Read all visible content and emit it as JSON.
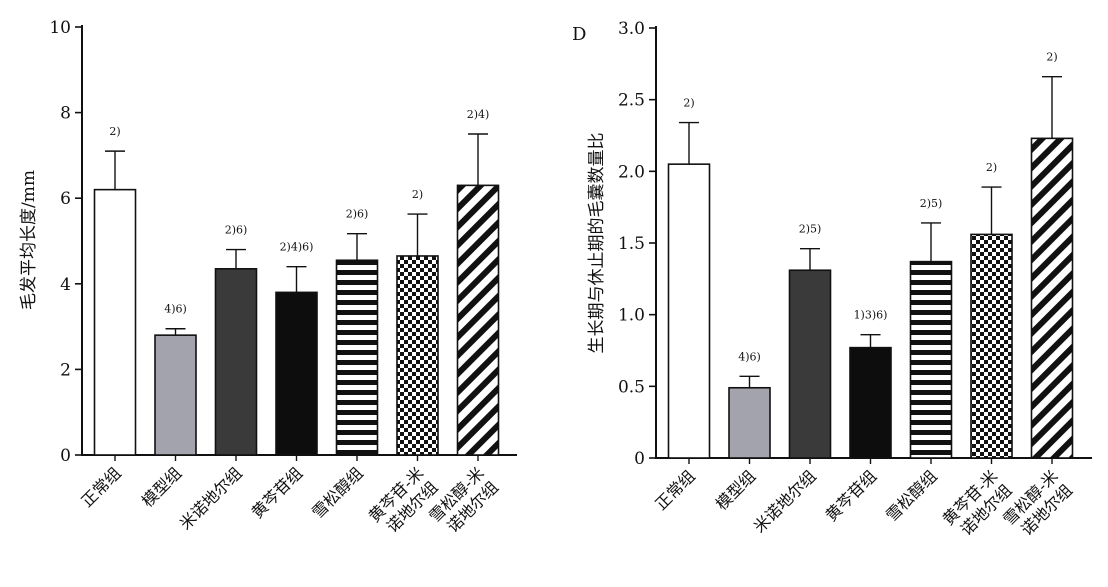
{
  "chart_data": [
    {
      "type": "bar",
      "title": "",
      "panel_label": "",
      "xlabel": "",
      "ylabel": "毛发平均长度/mm",
      "ylim": [
        0,
        10
      ],
      "yticks": [
        "0",
        "2",
        "4",
        "6",
        "8",
        "10"
      ],
      "grid": false,
      "legend": "none",
      "categories": [
        [
          "正常组"
        ],
        [
          "模型组"
        ],
        [
          "米诺地尔组"
        ],
        [
          "黄芩苷组"
        ],
        [
          "雪松醇组"
        ],
        [
          "黄芩苷-米",
          "诺地尔组"
        ],
        [
          "雪松醇-米",
          "诺地尔组"
        ]
      ],
      "values": [
        6.2,
        2.8,
        4.35,
        3.8,
        4.55,
        4.65,
        6.3
      ],
      "errors": [
        0.9,
        0.15,
        0.45,
        0.6,
        0.62,
        0.98,
        1.2
      ],
      "annotations": [
        "2)",
        "4)6)",
        "2)6)",
        "2)4)6)",
        "2)6)",
        "2)",
        "2)4)"
      ],
      "fills": [
        "white",
        "gray",
        "dark",
        "black",
        "hlines",
        "checker",
        "diag"
      ]
    },
    {
      "type": "bar",
      "title": "",
      "panel_label": "D",
      "xlabel": "",
      "ylabel": "生长期与休止期的毛囊数量比",
      "ylim": [
        0,
        3.0
      ],
      "yticks": [
        "0",
        "0.5",
        "1.0",
        "1.5",
        "2.0",
        "2.5",
        "3.0"
      ],
      "grid": false,
      "legend": "none",
      "categories": [
        [
          "正常组"
        ],
        [
          "模型组"
        ],
        [
          "米诺地尔组"
        ],
        [
          "黄芩苷组"
        ],
        [
          "雪松醇组"
        ],
        [
          "黄芩苷-米",
          "诺地尔组"
        ],
        [
          "雪松醇-米",
          "诺地尔组"
        ]
      ],
      "values": [
        2.05,
        0.49,
        1.31,
        0.77,
        1.37,
        1.56,
        2.23
      ],
      "errors": [
        0.29,
        0.08,
        0.15,
        0.09,
        0.27,
        0.33,
        0.43
      ],
      "annotations": [
        "2)",
        "4)6)",
        "2)5)",
        "1)3)6)",
        "2)5)",
        "2)",
        "2)"
      ],
      "fills": [
        "white",
        "gray",
        "dark",
        "black",
        "hlines",
        "checker",
        "diag"
      ]
    }
  ]
}
